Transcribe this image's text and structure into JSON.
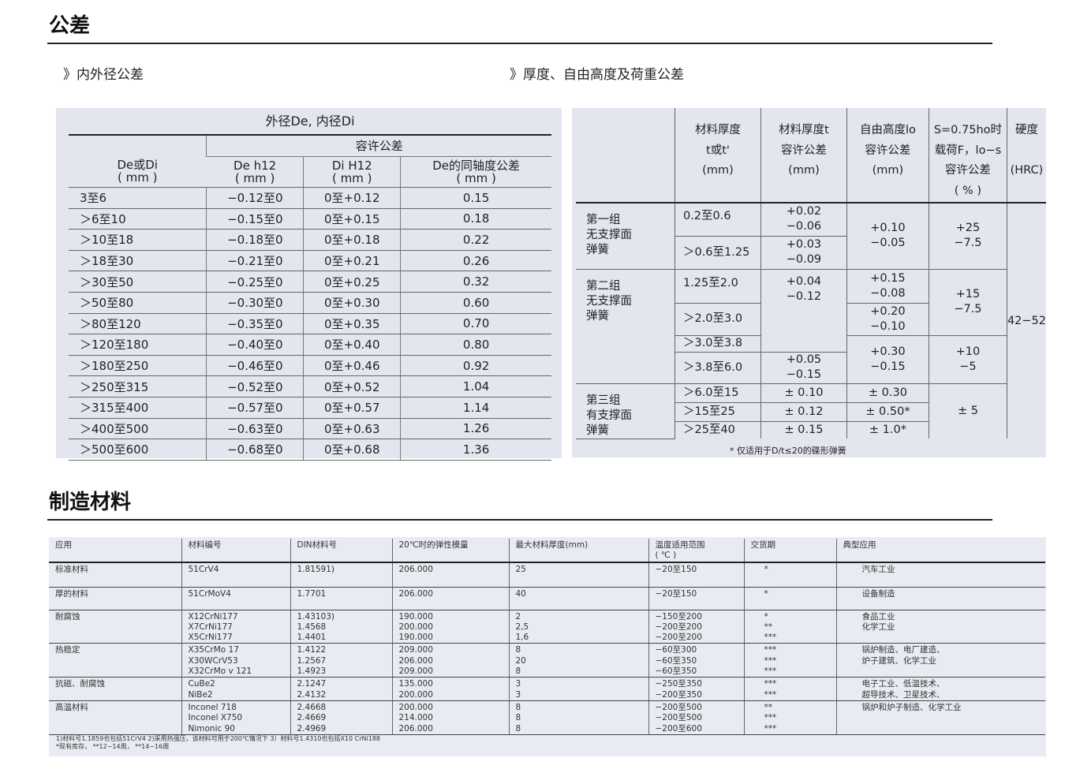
{
  "section1": {
    "title": "公差",
    "left_subtitle": "》内外径公差",
    "right_subtitle": "》厚度、自由高度及荷重公差"
  },
  "diameter_table": {
    "title": "外径De, 内径Di",
    "group_header": "容许公差",
    "headers": [
      "De或Di\n( mm )",
      "De  h12\n( mm )",
      "Di  H12\n( mm )",
      "De的同轴度公差\n( mm )"
    ],
    "rows": [
      [
        "3至6",
        "−0.12至0",
        "0至+0.12",
        "0.15"
      ],
      [
        "＞6至10",
        "−0.15至0",
        "0至+0.15",
        "0.18"
      ],
      [
        "＞10至18",
        "−0.18至0",
        "0至+0.18",
        "0.22"
      ],
      [
        "＞18至30",
        "−0.21至0",
        "0至+0.21",
        "0.26"
      ],
      [
        "＞30至50",
        "−0.25至0",
        "0至+0.25",
        "0.32"
      ],
      [
        "＞50至80",
        "−0.30至0",
        "0至+0.30",
        "0.60"
      ],
      [
        "＞80至120",
        "−0.35至0",
        "0至+0.35",
        "0.70"
      ],
      [
        "＞120至180",
        "−0.40至0",
        "0至+0.40",
        "0.80"
      ],
      [
        "＞180至250",
        "−0.46至0",
        "0至+0.46",
        "0.92"
      ],
      [
        "＞250至315",
        "−0.52至0",
        "0至+0.52",
        "1.04"
      ],
      [
        "＞315至400",
        "−0.57至0",
        "0至+0.57",
        "1.14"
      ],
      [
        "＞400至500",
        "−0.63至0",
        "0至+0.63",
        "1.26"
      ],
      [
        "＞500至600",
        "−0.68至0",
        "0至+0.68",
        "1.36"
      ]
    ]
  },
  "thickness_table": {
    "headers": [
      "",
      "材料厚度\nt或t'\n(mm)",
      "材料厚度t\n容许公差\n(mm)",
      "自由高度lo\n容许公差\n(mm)",
      "S=0.75ho时\n载荷F，lo−s\n容许公差\n( % )",
      "硬度\n\n(HRC)"
    ],
    "groups": [
      "第一组\n无支撑面\n弹簧",
      "第二组\n无支撑面\n弹簧",
      "第三组\n有支撑面\n弹簧"
    ],
    "ranges": [
      "0.2至0.6",
      "＞0.6至1.25",
      "1.25至2.0",
      "＞2.0至3.0",
      "＞3.0至3.8",
      "＞3.8至6.0",
      "＞6.0至15",
      "＞15至25",
      "＞25至40"
    ],
    "thickness_tol": [
      "+0.02\n−0.06",
      "+0.03\n−0.09",
      "+0.04\n−0.12",
      "+0.05\n−0.15",
      "± 0.10",
      "± 0.12",
      "± 0.15"
    ],
    "height_tol": [
      "+0.10\n−0.05",
      "+0.15\n−0.08",
      "+0.20\n−0.10",
      "+0.30\n−0.15",
      "± 0.30",
      "± 0.50*",
      "± 1.0*"
    ],
    "load_tol": [
      "+25\n−7.5",
      "+15\n−7.5",
      "+10\n−5",
      "± 5"
    ],
    "hardness": "42−52",
    "footnote": "* 仅适用于D/t≤20的碟形弹簧"
  },
  "section2": {
    "title": "制造材料"
  },
  "materials_table": {
    "headers": [
      "应用",
      "材料编号",
      "DIN材料号",
      "20℃时的弹性模量",
      "最大材料厚度(mm)",
      "温度适用范围\n( ℃ )",
      "交货期",
      "典型应用"
    ],
    "rows": [
      [
        "标准材料",
        "51CrV4",
        "1.81591)",
        "206.000",
        "25",
        "−20至150",
        "*",
        "汽车工业"
      ],
      [
        "厚的材料",
        "51CrMoV4",
        "1.7701",
        "206.000",
        "40",
        "−20至150",
        "*",
        "设备制造"
      ],
      [
        "耐腐蚀",
        "X12CrNi177\nX7CrNi177\nX5CrNi177",
        "1.43103)\n1.4568\n1.4401",
        "190.000\n200.000\n190.000",
        "2\n2,5\n1,6",
        "−150至200\n−200至200\n−200至200",
        "*\n**\n***",
        "食品工业\n化学工业"
      ],
      [
        "热稳定",
        "X35CrMo 17\nX30WCrV53\nX32CrMo v 121",
        "1.4122\n1.2567\n1.4923",
        "209.000\n206.000\n209.000",
        "8\n20\n8",
        "−60至300\n−60至350\n−60至350",
        "***\n***\n***",
        "锅炉制造、电厂建造、\n炉子建筑、化学工业"
      ],
      [
        "抗磁、耐腐蚀",
        "CuBe2\nNiBe2",
        "2.1247\n2.4132",
        "135.000\n200.000",
        "3\n3",
        "−250至350\n−200至350",
        "***\n***",
        "电子工业、低温技术、\n超导技术、卫星技术、"
      ],
      [
        "高温材料",
        "Inconel 718\nInconel X750\nNimonic 90",
        "2.4668\n2.4669\n2.4969",
        "200.000\n214.000\n206.000",
        "8\n8\n8",
        "−200至500\n−200至500\n−200至600",
        "**\n***\n***",
        "锅炉和炉子制造、化学工业"
      ]
    ],
    "footnotes": [
      "1)材料号1.1859也包括51CrV4   2)采用热强压，该材料可用于200℃情况下    3）材料号1.4310也包括X10 CrNi188",
      "*现有库存，   **12−14周，   **14−16周"
    ]
  }
}
